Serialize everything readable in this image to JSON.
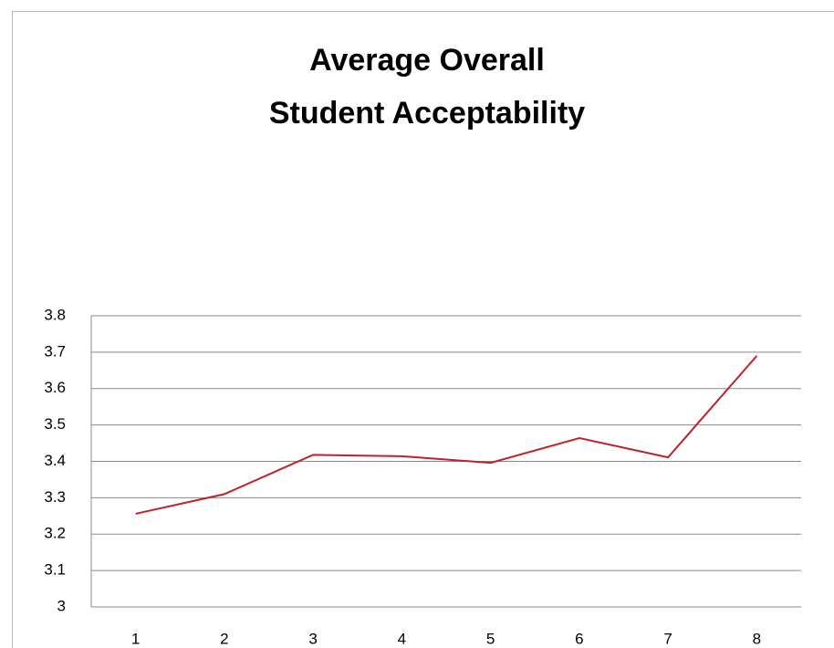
{
  "chart_data": {
    "type": "line",
    "title": [
      "Average Overall",
      "Student Acceptability"
    ],
    "categories": [
      "1",
      "2",
      "3",
      "4",
      "5",
      "6",
      "7",
      "8"
    ],
    "series": [
      {
        "color": "#c0202a",
        "values": [
          3.256,
          3.31,
          3.418,
          3.414,
          3.396,
          3.464,
          3.411,
          3.69
        ]
      }
    ],
    "ylim": [
      3,
      3.8
    ],
    "yticks": [
      3,
      3.1,
      3.2,
      3.3,
      3.4,
      3.5,
      3.6,
      3.7,
      3.8
    ],
    "grid": true
  }
}
